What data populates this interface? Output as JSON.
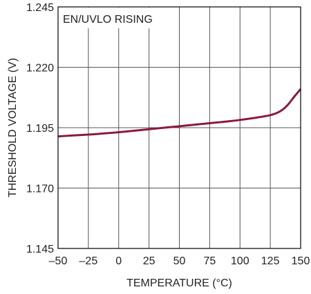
{
  "chart_data": {
    "type": "line",
    "title": "",
    "annotation": "EN/UVLO RISING",
    "xlabel": "TEMPERATURE (°C)",
    "ylabel": "THRESHOLD VOLTAGE (V)",
    "xlim": [
      -50,
      150
    ],
    "ylim": [
      1.145,
      1.245
    ],
    "xticks": [
      -50,
      -25,
      0,
      25,
      50,
      75,
      100,
      125,
      150
    ],
    "yticks": [
      1.145,
      1.17,
      1.195,
      1.22,
      1.245
    ],
    "xtick_labels": [
      "–50",
      "–25",
      "0",
      "25",
      "50",
      "75",
      "100",
      "125",
      "150"
    ],
    "ytick_labels": [
      "1.145",
      "1.170",
      "1.195",
      "1.220",
      "1.245"
    ],
    "grid": true,
    "legend": "none",
    "series": [
      {
        "color": "#8b1a3a",
        "x": [
          -50,
          -40,
          -30,
          -20,
          -10,
          0,
          10,
          20,
          30,
          40,
          50,
          60,
          70,
          80,
          90,
          100,
          110,
          120,
          125,
          130,
          135,
          140,
          145,
          150
        ],
        "y": [
          1.1914,
          1.1917,
          1.192,
          1.1923,
          1.1927,
          1.1931,
          1.1936,
          1.1941,
          1.1946,
          1.1951,
          1.1956,
          1.1961,
          1.1966,
          1.1971,
          1.1976,
          1.1982,
          1.1989,
          1.1997,
          1.2002,
          1.201,
          1.2024,
          1.2048,
          1.208,
          1.211
        ]
      }
    ]
  },
  "colors": {
    "curve": "#8b1a3a",
    "grid": "#555555",
    "frame": "#000000",
    "text": "#222222"
  }
}
